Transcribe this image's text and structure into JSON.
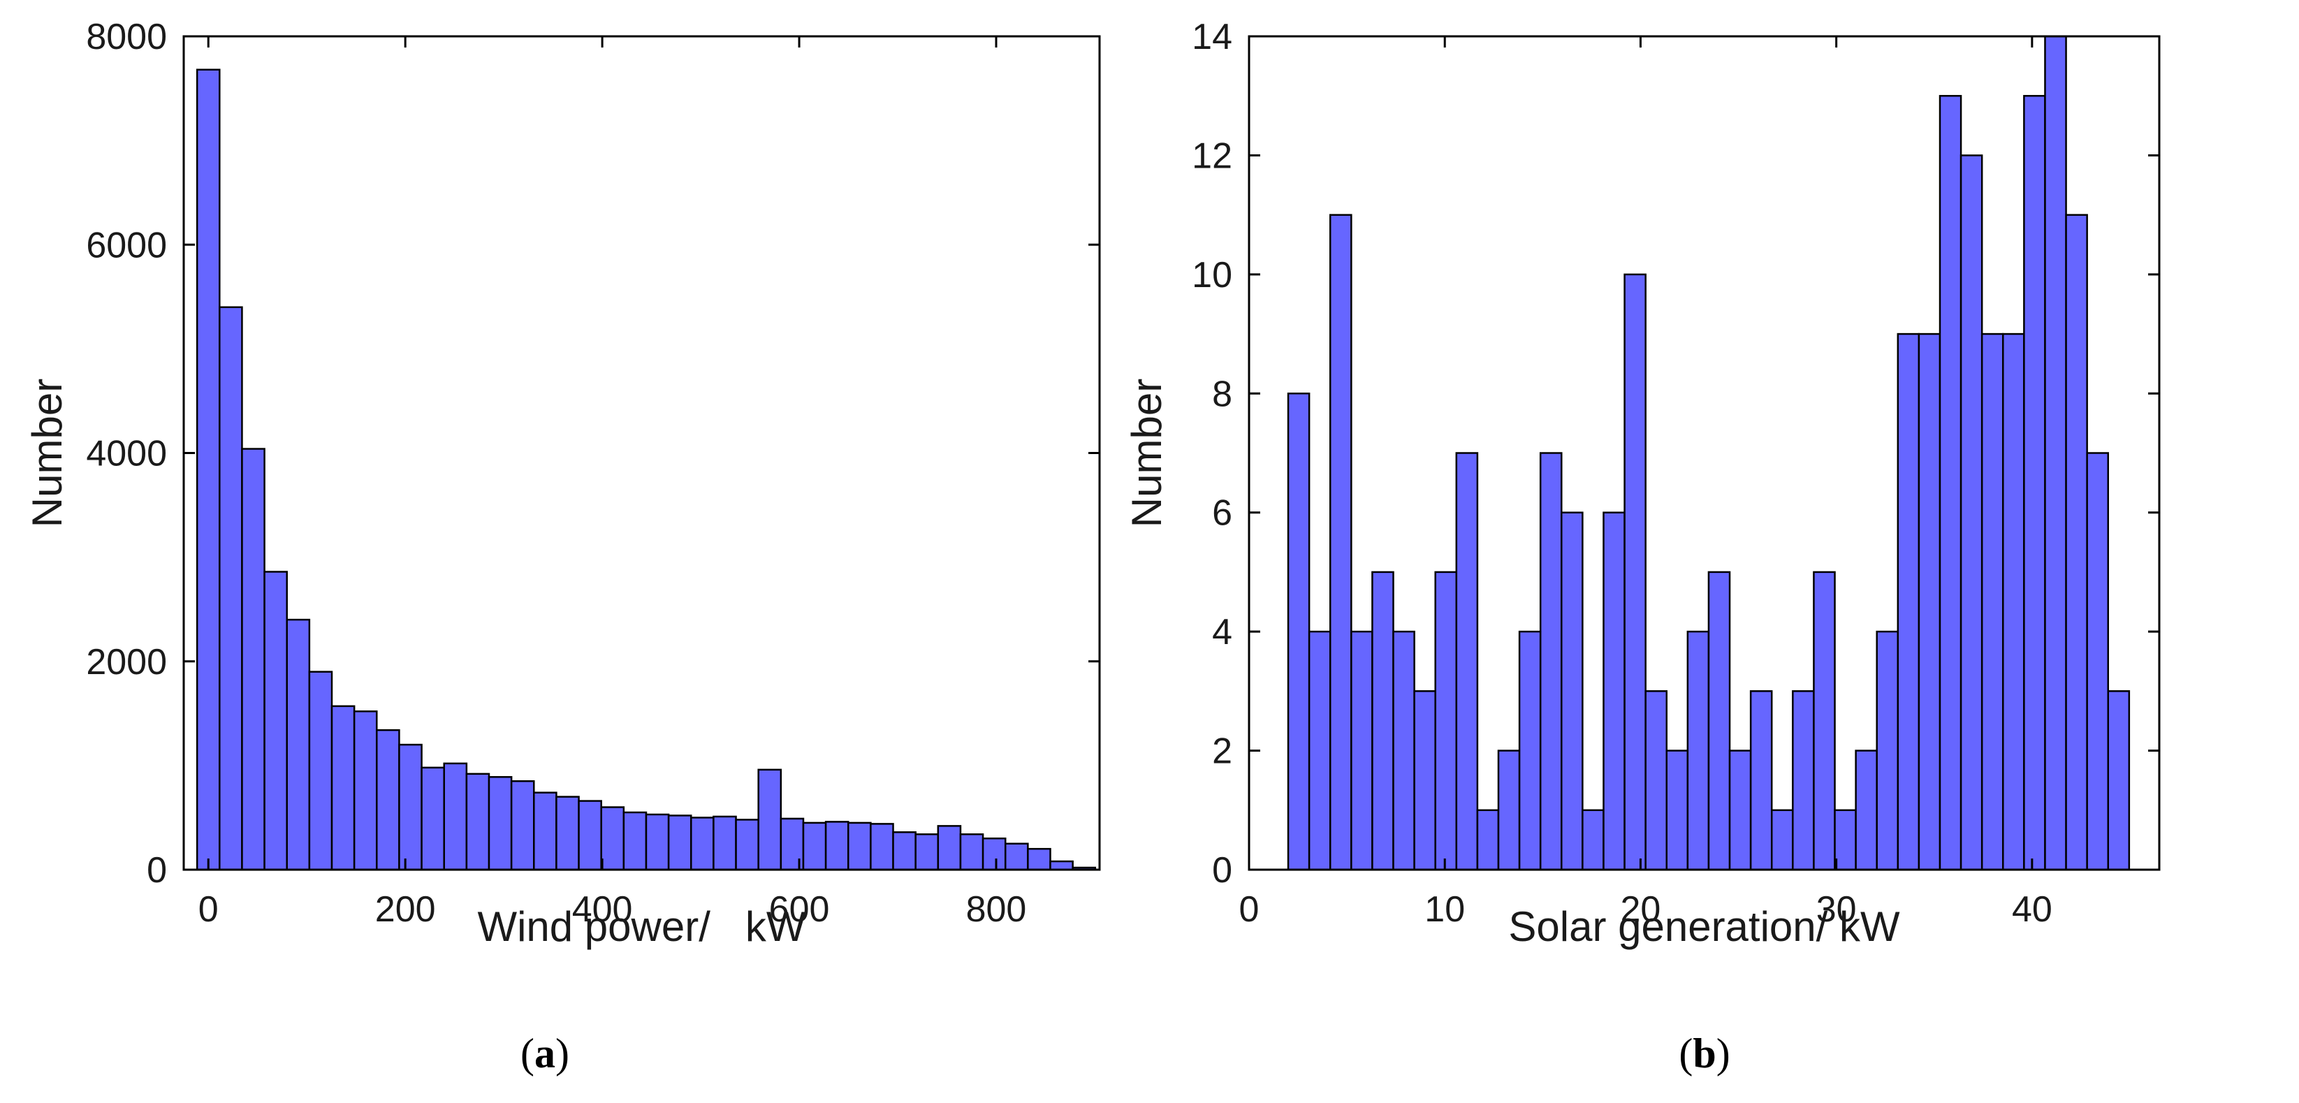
{
  "chart_data": [
    {
      "type": "bar",
      "id": "a",
      "caption_letter": "a",
      "xlabel": "Wind power/   kW",
      "ylabel": "Number",
      "xlim": [
        -25,
        905
      ],
      "ylim": [
        0,
        8000
      ],
      "xticks": [
        0,
        200,
        400,
        600,
        800
      ],
      "yticks": [
        0,
        2000,
        4000,
        6000,
        8000
      ],
      "bin_width": 22.8,
      "bin_starts": [
        -11.4,
        11.4,
        34.2,
        57.0,
        79.8,
        102.6,
        125.4,
        148.2,
        171.0,
        193.8,
        216.6,
        239.4,
        262.2,
        285.0,
        307.8,
        330.6,
        353.4,
        376.2,
        399.0,
        421.8,
        444.6,
        467.4,
        490.2,
        513.0,
        535.8,
        558.6,
        581.4,
        604.2,
        627.0,
        649.8,
        672.6,
        695.4,
        718.2,
        741.0,
        763.8,
        786.6,
        809.4,
        832.2,
        855.0,
        877.8
      ],
      "values": [
        7680,
        5400,
        4040,
        2860,
        2400,
        1900,
        1570,
        1520,
        1340,
        1200,
        980,
        1020,
        920,
        890,
        850,
        740,
        700,
        660,
        600,
        550,
        530,
        520,
        500,
        510,
        480,
        960,
        490,
        450,
        460,
        450,
        440,
        360,
        340,
        420,
        340,
        300,
        250,
        200,
        80,
        20
      ]
    },
    {
      "type": "bar",
      "id": "b",
      "caption_letter": "b",
      "xlabel": "Solar generation/ kW",
      "ylabel": "Number",
      "xlim": [
        0,
        46.5
      ],
      "ylim": [
        0,
        14
      ],
      "xticks": [
        0,
        10,
        20,
        30,
        40
      ],
      "yticks": [
        0,
        2,
        4,
        6,
        8,
        10,
        12,
        14
      ],
      "bin_width": 1.074,
      "bin_starts": [
        2.0,
        3.074,
        4.148,
        5.222,
        6.296,
        7.37,
        8.444,
        9.518,
        10.592,
        11.666,
        12.74,
        13.814,
        14.888,
        15.962,
        17.036,
        18.11,
        19.184,
        20.258,
        21.332,
        22.406,
        23.48,
        24.554,
        25.628,
        26.702,
        27.776,
        28.85,
        29.924,
        30.998,
        32.072,
        33.146,
        34.22,
        35.294,
        36.368,
        37.442,
        38.516,
        39.59,
        40.664,
        41.738,
        42.812,
        43.886
      ],
      "values": [
        8,
        4,
        11,
        4,
        5,
        4,
        3,
        5,
        7,
        1,
        2,
        4,
        7,
        6,
        1,
        6,
        10,
        3,
        2,
        4,
        5,
        2,
        3,
        1,
        3,
        5,
        1,
        2,
        4,
        9,
        9,
        13,
        12,
        9,
        9,
        13,
        14,
        11,
        7,
        3
      ]
    }
  ]
}
